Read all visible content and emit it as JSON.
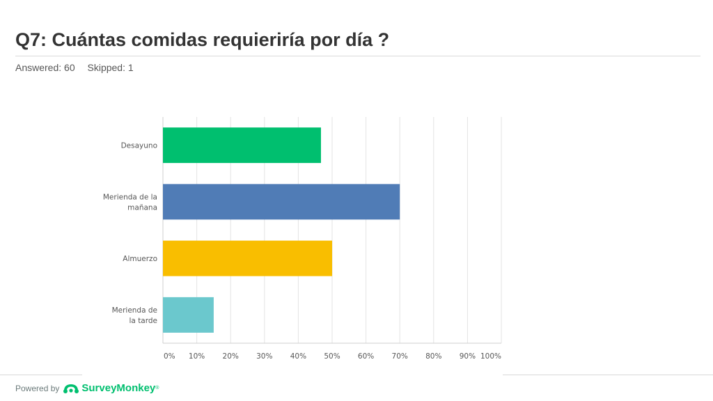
{
  "header": {
    "title": "Q7: Cuántas comidas requieriría por día ?",
    "answered": "Answered: 60",
    "skipped": "Skipped: 1"
  },
  "chart_data": {
    "type": "bar",
    "orientation": "horizontal",
    "categories": [
      [
        "Desayuno"
      ],
      [
        "Merienda de la",
        "mañana"
      ],
      [
        "Almuerzo"
      ],
      [
        "Merienda de",
        "la tarde"
      ]
    ],
    "values": [
      46.7,
      70,
      50,
      15
    ],
    "colors": [
      "#00bf6f",
      "#507cb6",
      "#f9be00",
      "#6bc8cd"
    ],
    "xlim": [
      0,
      100
    ],
    "x_ticks": [
      "0%",
      "10%",
      "20%",
      "30%",
      "40%",
      "50%",
      "60%",
      "70%",
      "80%",
      "90%",
      "100%"
    ],
    "grid": true
  },
  "footer": {
    "powered_by": "Powered by",
    "brand": "SurveyMonkey",
    "trademark": "®",
    "logo_icon": "surveymonkey-logo-icon",
    "brand_color": "#00bf6f"
  }
}
